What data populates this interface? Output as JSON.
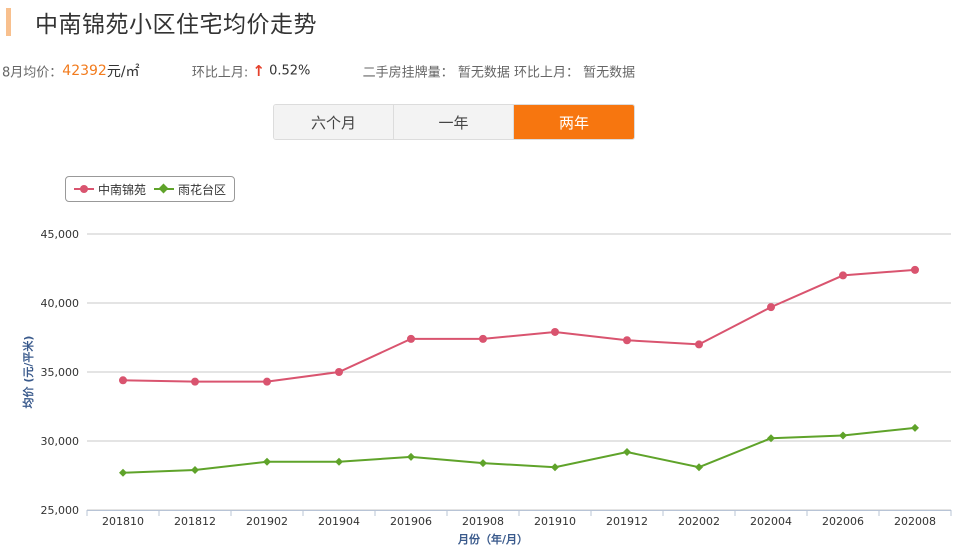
{
  "header": {
    "title": "中南锦苑小区住宅均价走势"
  },
  "stats": {
    "avg_label": "8月均价：",
    "avg_value": "42392",
    "avg_unit": "元/㎡",
    "mom_label": "环比上月:",
    "mom_arrow": "↑",
    "mom_value": "0.52%",
    "listing_label": "二手房挂牌量：",
    "listing_value": "暂无数据",
    "listing_mom_label": "环比上月：",
    "listing_mom_value": "暂无数据"
  },
  "tabs": [
    {
      "label": "六个月",
      "active": false
    },
    {
      "label": "一年",
      "active": false
    },
    {
      "label": "两年",
      "active": true
    }
  ],
  "colors": {
    "series1": "#d9546f",
    "series2": "#5fa32a",
    "accent": "#f7760f"
  },
  "chart_data": {
    "type": "line",
    "x": [
      "201810",
      "201812",
      "201902",
      "201904",
      "201906",
      "201908",
      "201910",
      "201912",
      "202002",
      "202004",
      "202006",
      "202008"
    ],
    "series": [
      {
        "name": "中南锦苑",
        "marker": "circle",
        "values": [
          34400,
          34300,
          34300,
          35000,
          37400,
          37400,
          37900,
          37300,
          37000,
          39700,
          42000,
          42400
        ]
      },
      {
        "name": "雨花台区",
        "marker": "diamond",
        "values": [
          27700,
          27900,
          28500,
          28500,
          28850,
          28400,
          28100,
          29200,
          28100,
          30200,
          30400,
          30950
        ]
      }
    ],
    "ylim": [
      25000,
      45000
    ],
    "yticks": [
      "25,000",
      "30,000",
      "35,000",
      "40,000",
      "45,000"
    ],
    "ytick_values": [
      25000,
      30000,
      35000,
      40000,
      45000
    ],
    "xlabel": "月份（年/月）",
    "ylabel": "均价 (元/平米)",
    "grid": true,
    "legend_position": "top-left"
  }
}
